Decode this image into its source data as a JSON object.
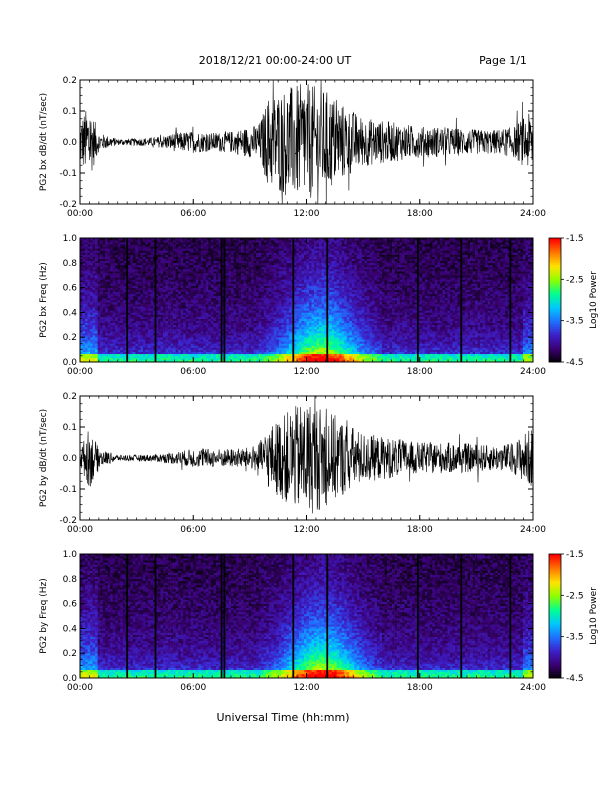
{
  "header": {
    "date_range": "2018/12/21  00:00-24:00 UT",
    "page": "Page 1/1"
  },
  "footer": {
    "xlabel": "Universal Time (hh:mm)"
  },
  "colors": {
    "colormap": [
      "#000000",
      "#3a0070",
      "#3d1fc8",
      "#1f6fff",
      "#00c8ff",
      "#00ff90",
      "#8cff00",
      "#ffe400",
      "#ff7800",
      "#ff0000"
    ]
  },
  "chart_data": [
    {
      "type": "line",
      "ylabel": "PG2 bx dB/dt (nT/sec)",
      "x_ticks": [
        "00:00",
        "06:00",
        "12:00",
        "18:00",
        "24:00"
      ],
      "y_ticks": [
        "-0.2",
        "-0.1",
        "0.0",
        "0.1",
        "0.2"
      ],
      "xlim": [
        0,
        24
      ],
      "ylim": [
        -0.2,
        0.2
      ],
      "envelope": {
        "x_hours": [
          0,
          0.5,
          1,
          2,
          3,
          4,
          5,
          6,
          7,
          8,
          9,
          9.5,
          10,
          11,
          12,
          13,
          14,
          15,
          16,
          17,
          18,
          19,
          20,
          21,
          22,
          23,
          23.5,
          24
        ],
        "amplitude": [
          0.08,
          0.12,
          0.03,
          0.01,
          0.012,
          0.015,
          0.03,
          0.035,
          0.03,
          0.035,
          0.05,
          0.06,
          0.15,
          0.18,
          0.19,
          0.17,
          0.12,
          0.08,
          0.07,
          0.06,
          0.05,
          0.05,
          0.045,
          0.04,
          0.04,
          0.05,
          0.08,
          0.1
        ]
      }
    },
    {
      "type": "heatmap",
      "ylabel": "PG2 bx Freq (Hz)",
      "x_ticks": [
        "00:00",
        "06:00",
        "12:00",
        "18:00",
        "24:00"
      ],
      "y_ticks": [
        "0.0",
        "0.2",
        "0.4",
        "0.6",
        "0.8",
        "1.0"
      ],
      "xlim": [
        0,
        24
      ],
      "ylim": [
        0,
        1
      ],
      "colorbar": {
        "label": "Log10 Power",
        "ticks": [
          "-1.5",
          "-2.5",
          "-3.5",
          "-4.5"
        ],
        "range": [
          -4.5,
          -1.5
        ]
      },
      "gap_hours": [
        2.5,
        4.0,
        7.5,
        7.65,
        11.3,
        13.1,
        17.9,
        20.2,
        22.8
      ]
    },
    {
      "type": "line",
      "ylabel": "PG2 by dB/dt (nT/sec)",
      "x_ticks": [
        "00:00",
        "06:00",
        "12:00",
        "18:00",
        "24:00"
      ],
      "y_ticks": [
        "-0.2",
        "-0.1",
        "0.0",
        "0.1",
        "0.2"
      ],
      "xlim": [
        0,
        24
      ],
      "ylim": [
        -0.2,
        0.2
      ],
      "envelope": {
        "x_hours": [
          0,
          0.5,
          1,
          2,
          3,
          4,
          5,
          6,
          7,
          8,
          9,
          9.5,
          10,
          11,
          12,
          13,
          14,
          15,
          16,
          17,
          18,
          19,
          20,
          21,
          22,
          23,
          23.5,
          24
        ],
        "amplitude": [
          0.03,
          0.1,
          0.03,
          0.01,
          0.01,
          0.012,
          0.02,
          0.03,
          0.03,
          0.03,
          0.035,
          0.05,
          0.1,
          0.15,
          0.19,
          0.16,
          0.12,
          0.08,
          0.07,
          0.06,
          0.05,
          0.05,
          0.05,
          0.045,
          0.04,
          0.05,
          0.08,
          0.1
        ]
      }
    },
    {
      "type": "heatmap",
      "ylabel": "PG2 by Freq (Hz)",
      "x_ticks": [
        "00:00",
        "06:00",
        "12:00",
        "18:00",
        "24:00"
      ],
      "y_ticks": [
        "0.0",
        "0.2",
        "0.4",
        "0.6",
        "0.8",
        "1.0"
      ],
      "xlim": [
        0,
        24
      ],
      "ylim": [
        0,
        1
      ],
      "colorbar": {
        "label": "Log10 Power",
        "ticks": [
          "-1.5",
          "-2.5",
          "-3.5",
          "-4.5"
        ],
        "range": [
          -4.5,
          -1.5
        ]
      },
      "gap_hours": [
        2.5,
        4.0,
        7.5,
        7.65,
        11.3,
        13.1,
        17.9,
        20.2,
        22.8
      ]
    }
  ]
}
